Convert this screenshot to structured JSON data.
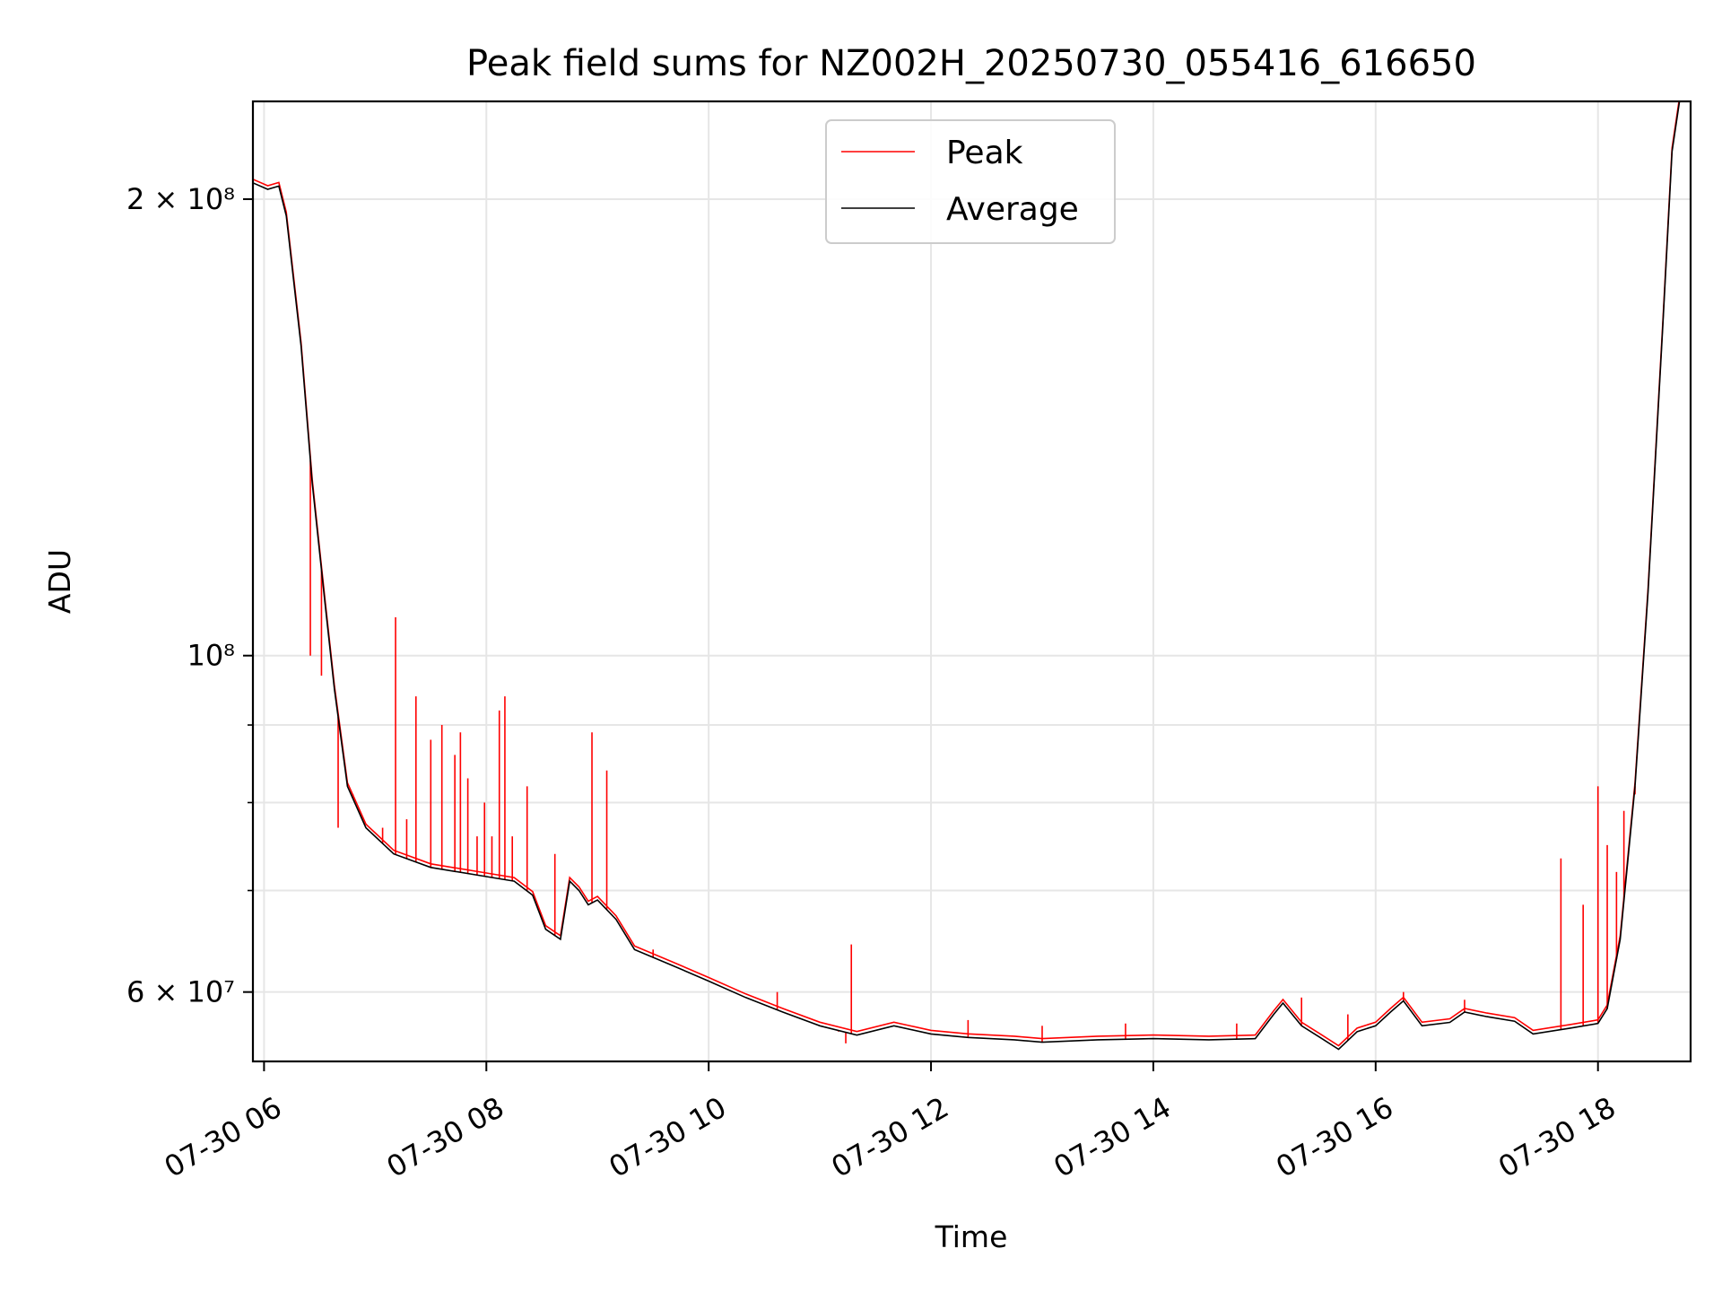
{
  "chart_data": {
    "type": "line",
    "title": "Peak field sums for NZ002H_20250730_055416_616650",
    "xlabel": "Time",
    "ylabel": "ADU",
    "x_scale": "time",
    "y_scale": "log",
    "xlim": [
      "2025-07-30 05:54",
      "2025-07-30 18:50"
    ],
    "ylim": [
      54000000,
      232000000
    ],
    "grid": true,
    "legend_position": "upper-center",
    "x_ticks": [
      {
        "value": "2025-07-30 06:00",
        "label": "07-30 06"
      },
      {
        "value": "2025-07-30 08:00",
        "label": "07-30 08"
      },
      {
        "value": "2025-07-30 10:00",
        "label": "07-30 10"
      },
      {
        "value": "2025-07-30 12:00",
        "label": "07-30 12"
      },
      {
        "value": "2025-07-30 14:00",
        "label": "07-30 14"
      },
      {
        "value": "2025-07-30 16:00",
        "label": "07-30 16"
      },
      {
        "value": "2025-07-30 18:00",
        "label": "07-30 18"
      }
    ],
    "y_major_ticks": [
      {
        "value": 60000000,
        "label": "6 × 10⁷"
      },
      {
        "value": 100000000,
        "label": "10⁸"
      },
      {
        "value": 200000000,
        "label": "2 × 10⁸"
      }
    ],
    "y_minor_ticks": [
      70000000,
      80000000,
      90000000
    ],
    "series": [
      {
        "name": "Average",
        "color": "#000000",
        "points": [
          [
            "2025-07-30 05:54",
            205000000
          ],
          [
            "2025-07-30 06:02",
            203000000
          ],
          [
            "2025-07-30 06:08",
            204000000
          ],
          [
            "2025-07-30 06:12",
            195000000
          ],
          [
            "2025-07-30 06:20",
            160000000
          ],
          [
            "2025-07-30 06:26",
            130000000
          ],
          [
            "2025-07-30 06:33",
            108000000
          ],
          [
            "2025-07-30 06:38",
            95000000
          ],
          [
            "2025-07-30 06:45",
            82000000
          ],
          [
            "2025-07-30 06:55",
            77000000
          ],
          [
            "2025-07-30 07:10",
            74000000
          ],
          [
            "2025-07-30 07:30",
            72500000
          ],
          [
            "2025-07-30 08:00",
            71500000
          ],
          [
            "2025-07-30 08:15",
            71000000
          ],
          [
            "2025-07-30 08:25",
            69500000
          ],
          [
            "2025-07-30 08:32",
            66000000
          ],
          [
            "2025-07-30 08:40",
            65000000
          ],
          [
            "2025-07-30 08:45",
            71000000
          ],
          [
            "2025-07-30 08:50",
            70000000
          ],
          [
            "2025-07-30 08:55",
            68500000
          ],
          [
            "2025-07-30 09:00",
            69000000
          ],
          [
            "2025-07-30 09:10",
            67000000
          ],
          [
            "2025-07-30 09:20",
            64000000
          ],
          [
            "2025-07-30 09:40",
            62500000
          ],
          [
            "2025-07-30 10:00",
            61000000
          ],
          [
            "2025-07-30 10:20",
            59500000
          ],
          [
            "2025-07-30 10:40",
            58200000
          ],
          [
            "2025-07-30 11:00",
            57000000
          ],
          [
            "2025-07-30 11:20",
            56200000
          ],
          [
            "2025-07-30 11:40",
            57000000
          ],
          [
            "2025-07-30 12:00",
            56300000
          ],
          [
            "2025-07-30 12:20",
            56000000
          ],
          [
            "2025-07-30 12:45",
            55800000
          ],
          [
            "2025-07-30 13:00",
            55600000
          ],
          [
            "2025-07-30 13:30",
            55800000
          ],
          [
            "2025-07-30 14:00",
            55900000
          ],
          [
            "2025-07-30 14:30",
            55800000
          ],
          [
            "2025-07-30 14:55",
            55900000
          ],
          [
            "2025-07-30 15:05",
            58000000
          ],
          [
            "2025-07-30 15:10",
            59000000
          ],
          [
            "2025-07-30 15:20",
            57000000
          ],
          [
            "2025-07-30 15:30",
            56000000
          ],
          [
            "2025-07-30 15:40",
            55000000
          ],
          [
            "2025-07-30 15:50",
            56500000
          ],
          [
            "2025-07-30 16:00",
            57000000
          ],
          [
            "2025-07-30 16:08",
            58200000
          ],
          [
            "2025-07-30 16:15",
            59200000
          ],
          [
            "2025-07-30 16:25",
            57000000
          ],
          [
            "2025-07-30 16:40",
            57300000
          ],
          [
            "2025-07-30 16:48",
            58200000
          ],
          [
            "2025-07-30 17:00",
            57800000
          ],
          [
            "2025-07-30 17:15",
            57400000
          ],
          [
            "2025-07-30 17:25",
            56300000
          ],
          [
            "2025-07-30 17:45",
            56800000
          ],
          [
            "2025-07-30 18:00",
            57200000
          ],
          [
            "2025-07-30 18:05",
            58500000
          ],
          [
            "2025-07-30 18:12",
            65000000
          ],
          [
            "2025-07-30 18:20",
            82000000
          ],
          [
            "2025-07-30 18:27",
            110000000
          ],
          [
            "2025-07-30 18:35",
            165000000
          ],
          [
            "2025-07-30 18:40",
            215000000
          ],
          [
            "2025-07-30 18:44",
            232000000
          ],
          [
            "2025-07-30 18:50",
            232000000
          ]
        ]
      },
      {
        "name": "Peak",
        "color": "#ff0000",
        "spikes": [
          [
            "2025-07-30 06:25",
            100000000
          ],
          [
            "2025-07-30 06:31",
            97000000
          ],
          [
            "2025-07-30 06:48",
            81000000
          ],
          [
            "2025-07-30 06:40",
            77000000
          ],
          [
            "2025-07-30 07:04",
            77000000
          ],
          [
            "2025-07-30 07:11",
            106000000
          ],
          [
            "2025-07-30 07:17",
            78000000
          ],
          [
            "2025-07-30 07:22",
            94000000
          ],
          [
            "2025-07-30 07:30",
            88000000
          ],
          [
            "2025-07-30 07:36",
            90000000
          ],
          [
            "2025-07-30 07:43",
            86000000
          ],
          [
            "2025-07-30 07:46",
            89000000
          ],
          [
            "2025-07-30 07:50",
            83000000
          ],
          [
            "2025-07-30 07:55",
            76000000
          ],
          [
            "2025-07-30 07:59",
            80000000
          ],
          [
            "2025-07-30 08:03",
            76000000
          ],
          [
            "2025-07-30 08:07",
            92000000
          ],
          [
            "2025-07-30 08:10",
            94000000
          ],
          [
            "2025-07-30 08:14",
            76000000
          ],
          [
            "2025-07-30 08:22",
            82000000
          ],
          [
            "2025-07-30 08:37",
            74000000
          ],
          [
            "2025-07-30 08:57",
            89000000
          ],
          [
            "2025-07-30 09:05",
            84000000
          ],
          [
            "2025-07-30 09:30",
            64000000
          ],
          [
            "2025-07-30 10:37",
            60000000
          ],
          [
            "2025-07-30 11:10",
            56500000
          ],
          [
            "2025-07-30 11:14",
            55500000
          ],
          [
            "2025-07-30 11:17",
            64500000
          ],
          [
            "2025-07-30 12:20",
            57500000
          ],
          [
            "2025-07-30 13:00",
            57000000
          ],
          [
            "2025-07-30 13:45",
            57200000
          ],
          [
            "2025-07-30 14:45",
            57200000
          ],
          [
            "2025-07-30 15:20",
            59500000
          ],
          [
            "2025-07-30 15:45",
            58000000
          ],
          [
            "2025-07-30 16:15",
            60000000
          ],
          [
            "2025-07-30 16:48",
            59300000
          ],
          [
            "2025-07-30 17:40",
            73500000
          ],
          [
            "2025-07-30 17:52",
            68500000
          ],
          [
            "2025-07-30 18:00",
            82000000
          ],
          [
            "2025-07-30 18:05",
            75000000
          ],
          [
            "2025-07-30 18:10",
            72000000
          ],
          [
            "2025-07-30 18:14",
            79000000
          ],
          [
            "2025-07-30 18:20",
            81000000
          ]
        ]
      }
    ]
  }
}
